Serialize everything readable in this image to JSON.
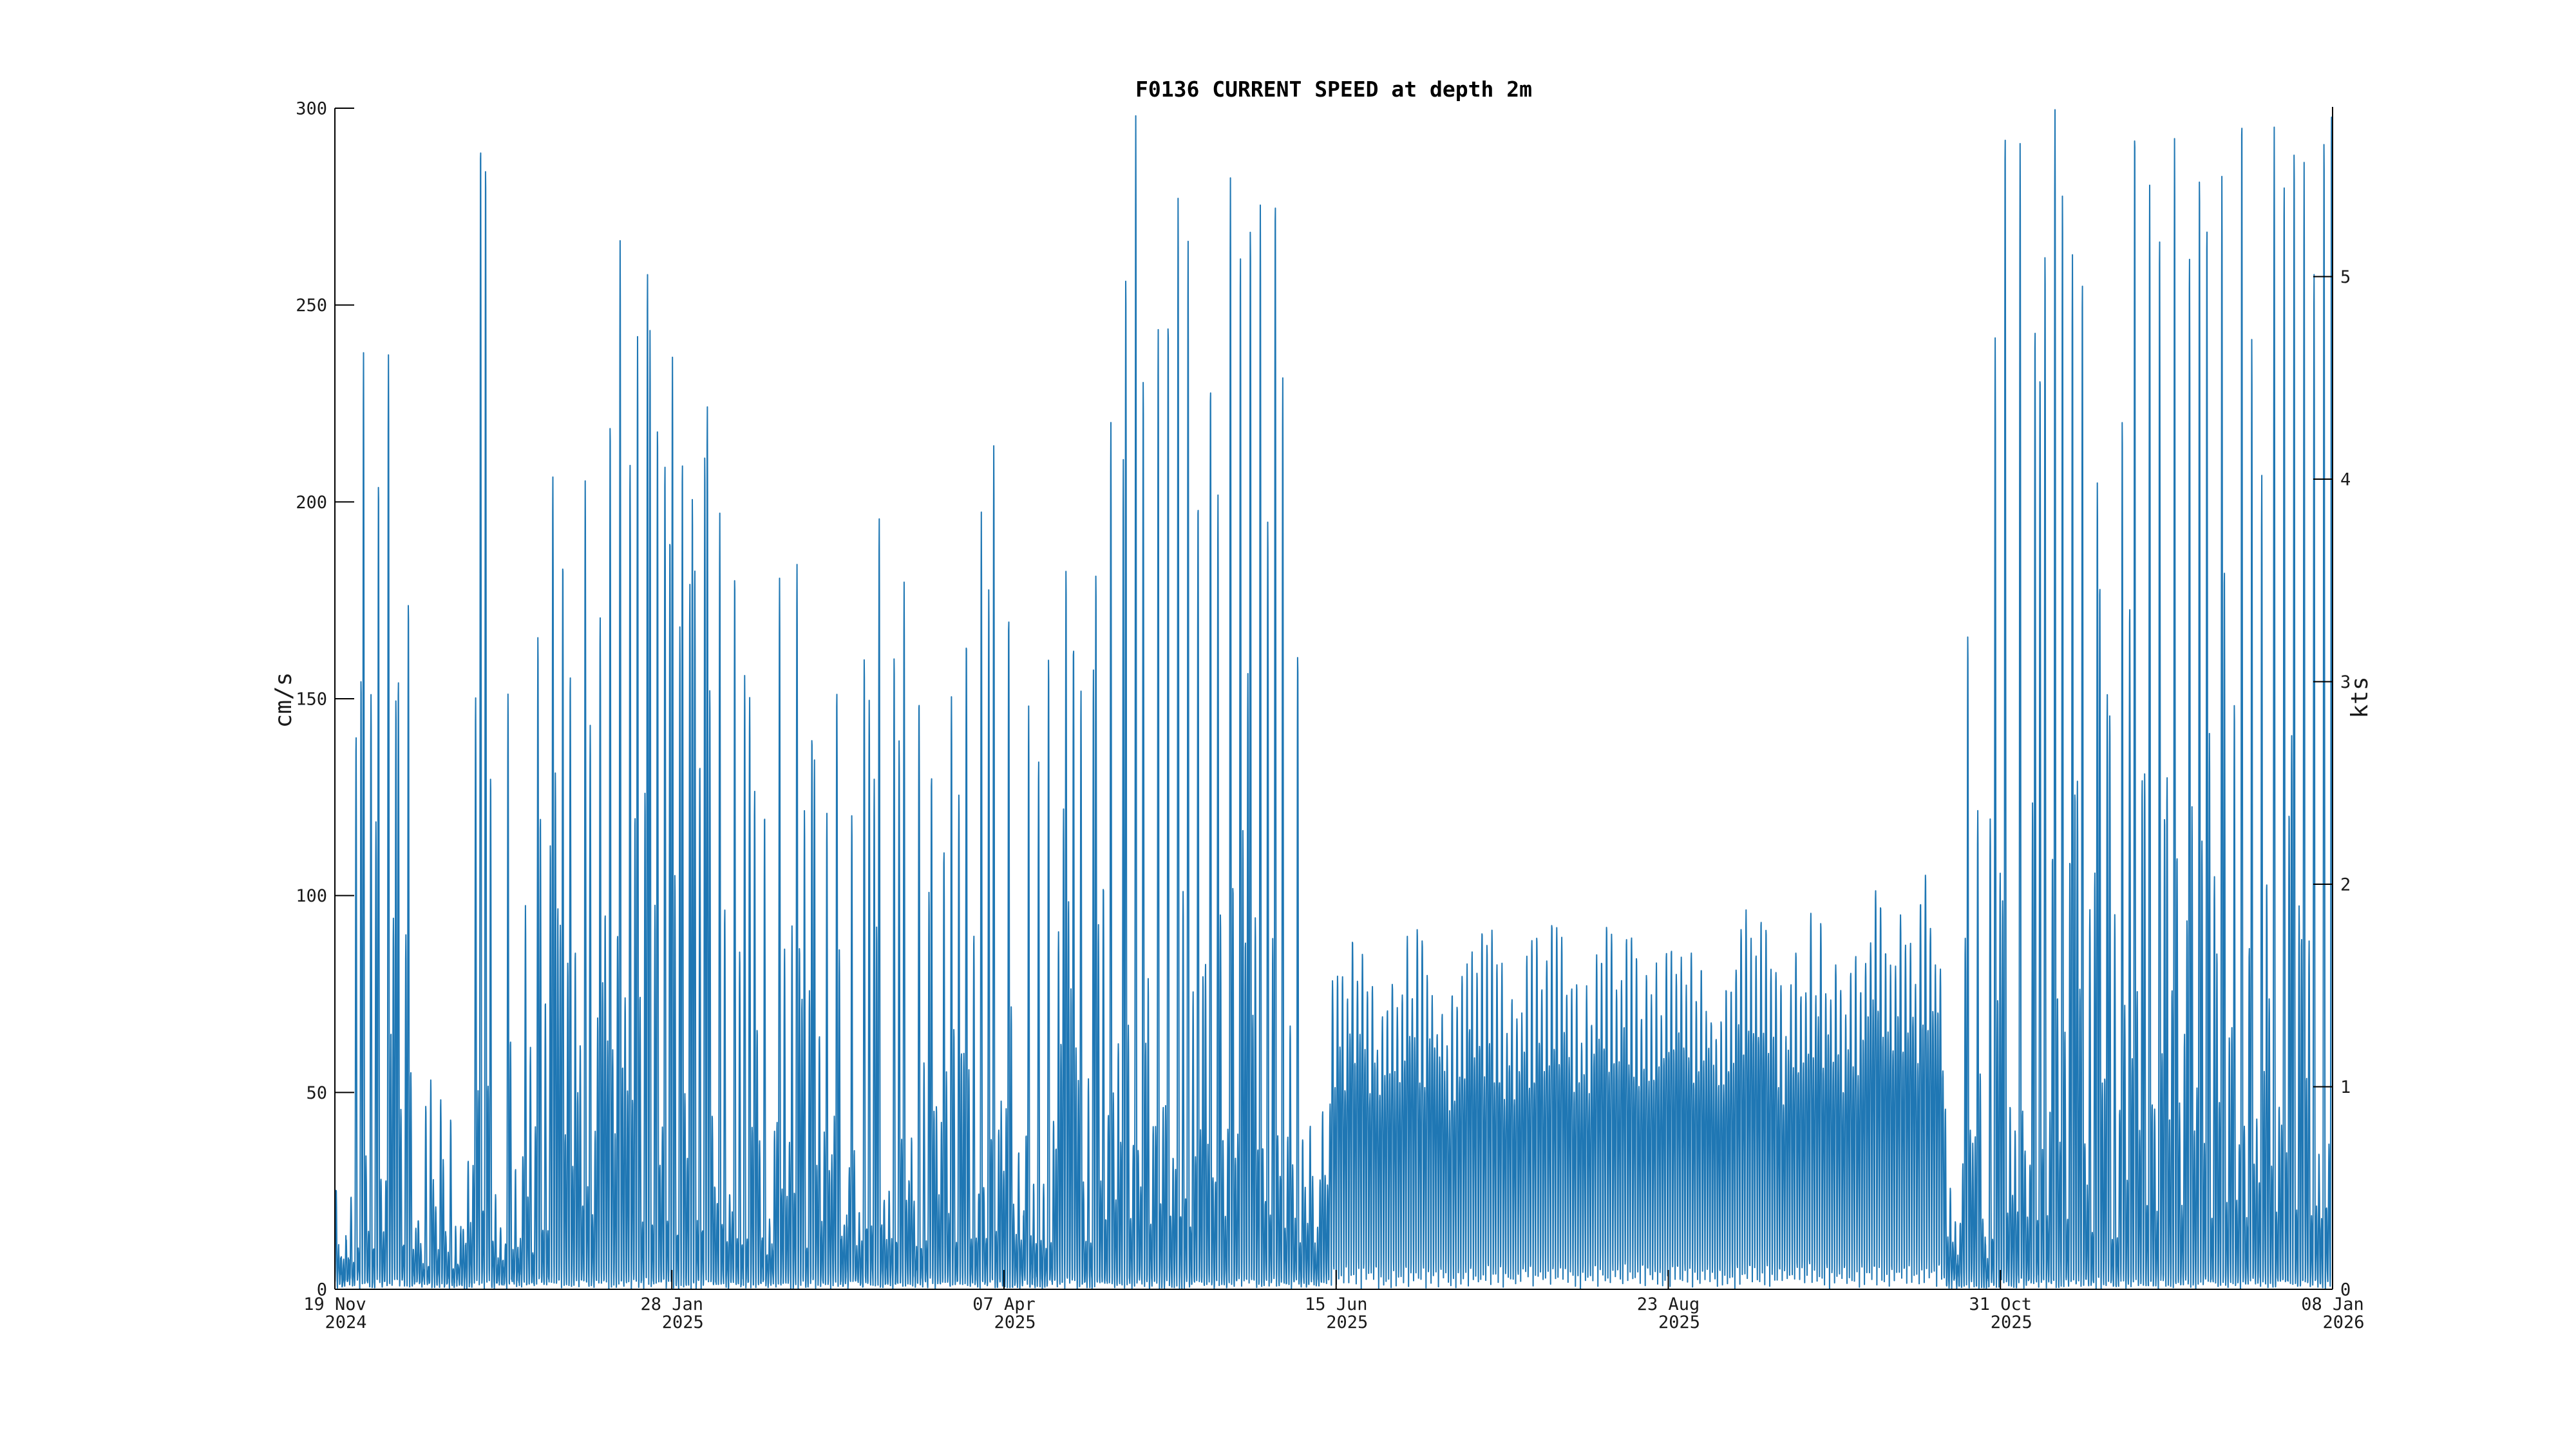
{
  "chart_data": {
    "type": "line",
    "title": "F0136 CURRENT SPEED at depth 2m",
    "ylabel_left": "cm/s",
    "ylabel_right": "kts",
    "series_name": "current speed at 2 m depth",
    "series_color": "#1f77b4",
    "background_color": "#ffffff",
    "grid": "off",
    "legend": "none",
    "x_axis": {
      "start_date": "19 Nov 2024",
      "end_date": "08 Jan 2026",
      "total_days": 415,
      "ticks": [
        {
          "day": 0,
          "date": "19 Nov",
          "year": "2024"
        },
        {
          "day": 70,
          "date": "28 Jan",
          "year": "2025"
        },
        {
          "day": 139,
          "date": "07 Apr",
          "year": "2025"
        },
        {
          "day": 208,
          "date": "15 Jun",
          "year": "2025"
        },
        {
          "day": 277,
          "date": "23 Aug",
          "year": "2025"
        },
        {
          "day": 346,
          "date": "31 Oct",
          "year": "2025"
        },
        {
          "day": 415,
          "date": "08 Jan",
          "year": "2026"
        }
      ]
    },
    "y_left_axis": {
      "label": "cm/s",
      "min": 0,
      "max": 300,
      "ticks": [
        0,
        50,
        100,
        150,
        200,
        250,
        300
      ]
    },
    "y_right_axis": {
      "label": "kts",
      "ticks": [
        0,
        1,
        2,
        3,
        4,
        5
      ],
      "cm_s_per_knot": 51.444
    },
    "description": "Dense tidal current-speed time series, ~2 peaks per day oscillating from near 0 up to an envelope; spiky storm/spring-tide events Nov-Jun and Nov-Jan, a steady dense band of ~70-95 cm/s mid-Jun through Oct.",
    "tidal_cycle_days": 0.5175,
    "summer_band_days": [
      206,
      334
    ],
    "envelope_daily_max_cm_s": [
      [
        0,
        45
      ],
      [
        3,
        50
      ],
      [
        4.5,
        140
      ],
      [
        6,
        236
      ],
      [
        7.5,
        150
      ],
      [
        9,
        205
      ],
      [
        11,
        236
      ],
      [
        13,
        155
      ],
      [
        15,
        175
      ],
      [
        17,
        95
      ],
      [
        19,
        62
      ],
      [
        21,
        90
      ],
      [
        23,
        58
      ],
      [
        26,
        62
      ],
      [
        29,
        150
      ],
      [
        30,
        292
      ],
      [
        31,
        286
      ],
      [
        32,
        130
      ],
      [
        33,
        95
      ],
      [
        35,
        75
      ],
      [
        36,
        150
      ],
      [
        38,
        95
      ],
      [
        40,
        115
      ],
      [
        42,
        165
      ],
      [
        45,
        205
      ],
      [
        47,
        185
      ],
      [
        49,
        155
      ],
      [
        52,
        204
      ],
      [
        55,
        170
      ],
      [
        57,
        220
      ],
      [
        59,
        265
      ],
      [
        61,
        210
      ],
      [
        63,
        240
      ],
      [
        65,
        258
      ],
      [
        67,
        220
      ],
      [
        70,
        236
      ],
      [
        72,
        210
      ],
      [
        74,
        200
      ],
      [
        77,
        224
      ],
      [
        80,
        195
      ],
      [
        83,
        180
      ],
      [
        86,
        150
      ],
      [
        89,
        120
      ],
      [
        92,
        179
      ],
      [
        96,
        183
      ],
      [
        99,
        140
      ],
      [
        102,
        120
      ],
      [
        104,
        152
      ],
      [
        107,
        120
      ],
      [
        110,
        160
      ],
      [
        113,
        195
      ],
      [
        116,
        160
      ],
      [
        118,
        178
      ],
      [
        121,
        150
      ],
      [
        124,
        130
      ],
      [
        128,
        150
      ],
      [
        131,
        165
      ],
      [
        134,
        195
      ],
      [
        137,
        213
      ],
      [
        140,
        170
      ],
      [
        144,
        146
      ],
      [
        148,
        160
      ],
      [
        152,
        182
      ],
      [
        155,
        150
      ],
      [
        158,
        180
      ],
      [
        161,
        220
      ],
      [
        164,
        257
      ],
      [
        166,
        296
      ],
      [
        168,
        230
      ],
      [
        171,
        243
      ],
      [
        173,
        246
      ],
      [
        175,
        276
      ],
      [
        177,
        265
      ],
      [
        179,
        200
      ],
      [
        182,
        230
      ],
      [
        186,
        282
      ],
      [
        188,
        263
      ],
      [
        190,
        270
      ],
      [
        192,
        275
      ],
      [
        195,
        277
      ],
      [
        197,
        230
      ],
      [
        200,
        160
      ],
      [
        203,
        110
      ],
      [
        206,
        80
      ],
      [
        209,
        85
      ],
      [
        212,
        92
      ],
      [
        217,
        74
      ],
      [
        222,
        93
      ],
      [
        227,
        90
      ],
      [
        231,
        72
      ],
      [
        236,
        94
      ],
      [
        241,
        90
      ],
      [
        245,
        75
      ],
      [
        250,
        95
      ],
      [
        255,
        92
      ],
      [
        259,
        76
      ],
      [
        264,
        96
      ],
      [
        269,
        93
      ],
      [
        273,
        78
      ],
      [
        278,
        95
      ],
      [
        283,
        92
      ],
      [
        287,
        80
      ],
      [
        292,
        96
      ],
      [
        297,
        93
      ],
      [
        301,
        80
      ],
      [
        306,
        95
      ],
      [
        310,
        92
      ],
      [
        315,
        85
      ],
      [
        320,
        105
      ],
      [
        324,
        100
      ],
      [
        328,
        95
      ],
      [
        331,
        110
      ],
      [
        334,
        90
      ],
      [
        336,
        80
      ],
      [
        339,
        165
      ],
      [
        341,
        120
      ],
      [
        343,
        85
      ],
      [
        345,
        240
      ],
      [
        347,
        294
      ],
      [
        350,
        290
      ],
      [
        353,
        245
      ],
      [
        357,
        300
      ],
      [
        359,
        279
      ],
      [
        361,
        262
      ],
      [
        363,
        255
      ],
      [
        366,
        205
      ],
      [
        368,
        150
      ],
      [
        371,
        220
      ],
      [
        374,
        295
      ],
      [
        377,
        280
      ],
      [
        379,
        267
      ],
      [
        382,
        291
      ],
      [
        385,
        262
      ],
      [
        387,
        284
      ],
      [
        389,
        270
      ],
      [
        392,
        283
      ],
      [
        396,
        299
      ],
      [
        398,
        240
      ],
      [
        400,
        205
      ],
      [
        403,
        293
      ],
      [
        405,
        281
      ],
      [
        407,
        290
      ],
      [
        409,
        285
      ],
      [
        411,
        258
      ],
      [
        413,
        292
      ],
      [
        415,
        299
      ]
    ]
  }
}
